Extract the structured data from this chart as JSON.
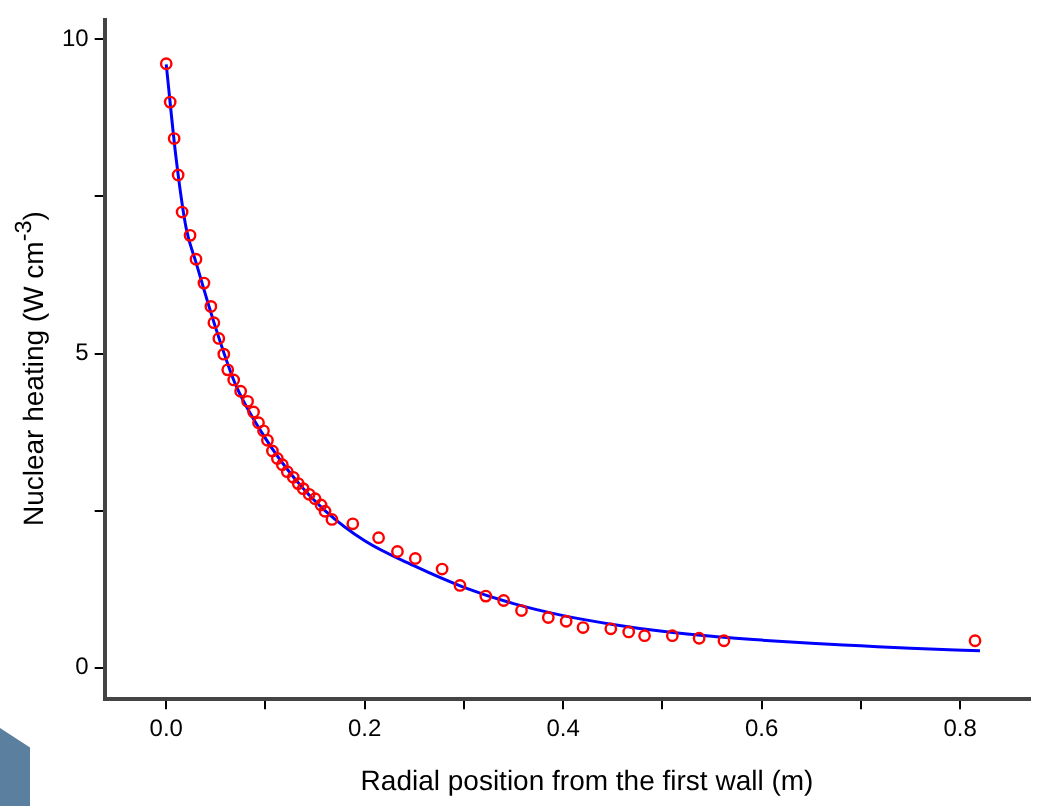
{
  "chart_data": {
    "type": "scatter",
    "xlabel": "Radial position from the first wall (m)",
    "ylabel": "Nuclear heating (W cm$^{-3}$)",
    "xlim": [
      -0.062,
      0.87
    ],
    "ylim": [
      -0.5,
      10.3
    ],
    "xticks": [
      {
        "value": 0,
        "label": "0.0"
      },
      {
        "value": 0.1,
        "label": null
      },
      {
        "value": 0.2,
        "label": "0.2"
      },
      {
        "value": 0.3,
        "label": null
      },
      {
        "value": 0.4,
        "label": "0.4"
      },
      {
        "value": 0.5,
        "label": null
      },
      {
        "value": 0.6,
        "label": "0.6"
      },
      {
        "value": 0.7,
        "label": null
      },
      {
        "value": 0.8,
        "label": "0.8"
      }
    ],
    "yticks": [
      0,
      {
        "value": 2.5,
        "label": null
      },
      5,
      {
        "value": 7.5,
        "label": null
      },
      10
    ],
    "grid": false,
    "legend": false,
    "series": [
      {
        "color": "#ff0000",
        "marker": "circle",
        "x": [
          0,
          0.004,
          0.008,
          0.012,
          0.016,
          0.024,
          0.03,
          0.038,
          0.045,
          0.048,
          0.053,
          0.058,
          0.062,
          0.068,
          0.075,
          0.082,
          0.088,
          0.093,
          0.098,
          0.102,
          0.107,
          0.112,
          0.117,
          0.122,
          0.128,
          0.133,
          0.138,
          0.144,
          0.15,
          0.156,
          0.16,
          0.167,
          0.188,
          0.214,
          0.233,
          0.251,
          0.278,
          0.296,
          0.322,
          0.34,
          0.358,
          0.385,
          0.403,
          0.42,
          0.448,
          0.466,
          0.482,
          0.51,
          0.537,
          0.562,
          0.815
        ],
        "values": [
          9.61,
          9.0,
          8.42,
          7.84,
          7.25,
          6.88,
          6.5,
          6.12,
          5.75,
          5.49,
          5.24,
          4.99,
          4.74,
          4.58,
          4.4,
          4.24,
          4.07,
          3.9,
          3.77,
          3.62,
          3.45,
          3.33,
          3.23,
          3.12,
          3.03,
          2.93,
          2.85,
          2.76,
          2.69,
          2.59,
          2.49,
          2.36,
          2.29,
          2.07,
          1.85,
          1.74,
          1.57,
          1.31,
          1.14,
          1.07,
          0.91,
          0.8,
          0.74,
          0.64,
          0.62,
          0.57,
          0.51,
          0.51,
          0.47,
          0.43,
          0.43
        ]
      },
      {
        "type": "line",
        "color": "#0000ff",
        "marker": "none",
        "line_style": "solid",
        "x": [
          0,
          0.01,
          0.02,
          0.03,
          0.05,
          0.07,
          0.1,
          0.13,
          0.16,
          0.2,
          0.25,
          0.3,
          0.35,
          0.4,
          0.45,
          0.5,
          0.55,
          0.6,
          0.65,
          0.7,
          0.75,
          0.82
        ],
        "values": [
          9.6,
          8.1,
          7.0,
          6.45,
          5.4,
          4.5,
          3.65,
          3.0,
          2.5,
          2.02,
          1.62,
          1.28,
          1.02,
          0.83,
          0.69,
          0.58,
          0.5,
          0.44,
          0.39,
          0.35,
          0.31,
          0.27
        ]
      }
    ]
  }
}
